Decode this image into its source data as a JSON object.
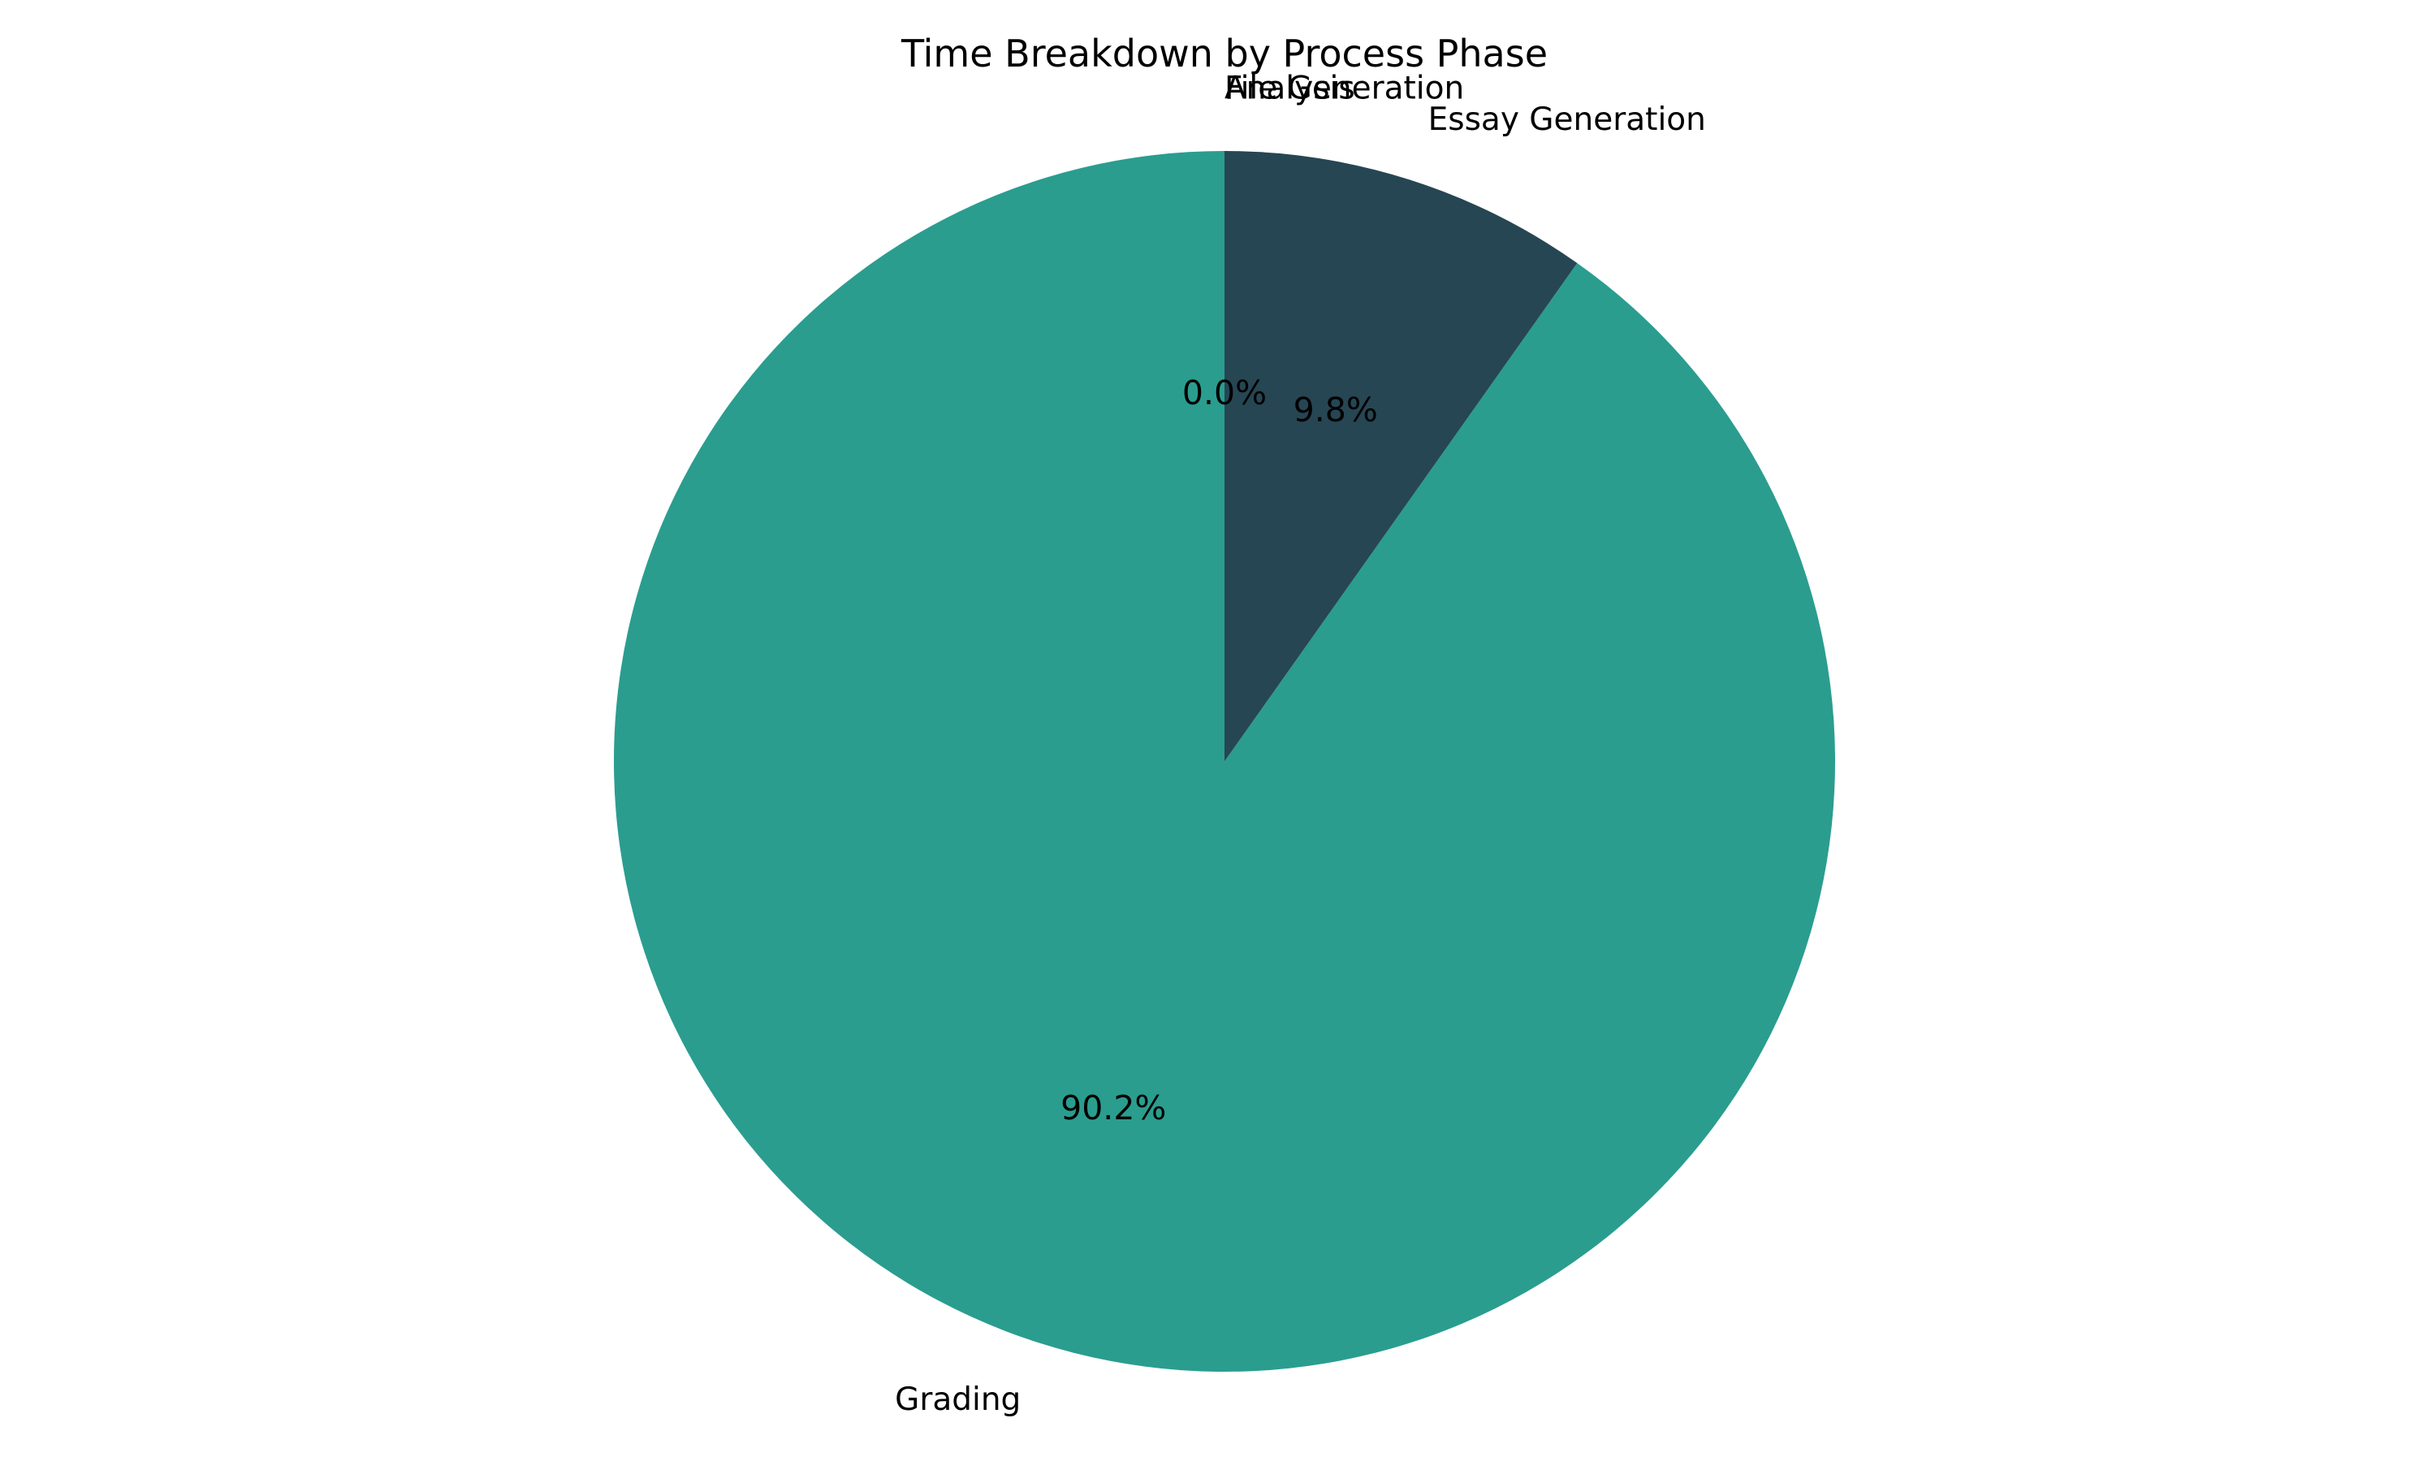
{
  "chart_data": {
    "type": "pie",
    "title": "Time Breakdown by Process Phase",
    "slices": [
      {
        "label": "Grading",
        "value": 90.2,
        "pct_label": "90.2%",
        "color": "#2a9d8f"
      },
      {
        "label": "Essay Generation",
        "value": 9.8,
        "pct_label": "9.8%",
        "color": "#264653"
      },
      {
        "label": "Analysis",
        "value": 0.0,
        "pct_label": "0.0%",
        "color": "#e9c46a"
      },
      {
        "label": "File Generation",
        "value": 0.0,
        "pct_label": "",
        "color": "#f4a261"
      }
    ],
    "start_angle": 90,
    "direction": "counterclockwise",
    "legend": "none"
  }
}
